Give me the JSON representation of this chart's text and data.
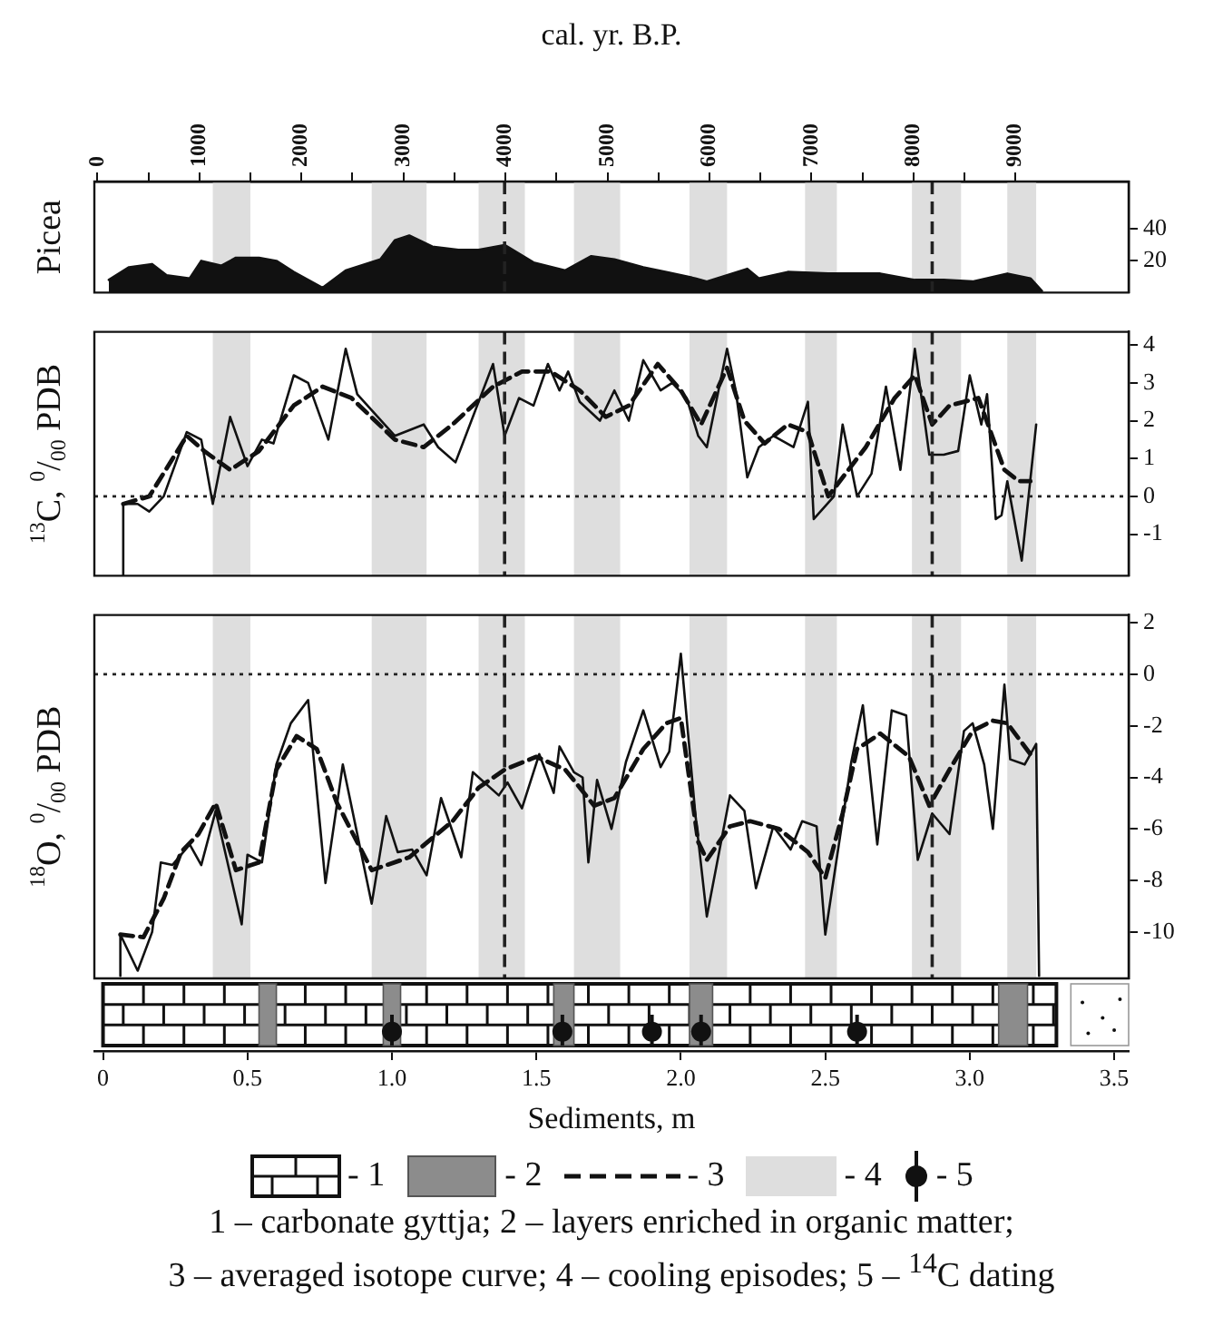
{
  "chart_data": [
    {
      "type": "area",
      "x2label": "cal. yr. B.P.",
      "ylabel": "Picea",
      "tick_labels": "y",
      "grid": false,
      "marker": "none",
      "x": [
        0.02,
        0.09,
        0.17,
        0.22,
        0.3,
        0.34,
        0.41,
        0.46,
        0.54,
        0.6,
        0.66,
        0.76,
        0.84,
        0.96,
        1.01,
        1.06,
        1.14,
        1.23,
        1.3,
        1.39,
        1.49,
        1.6,
        1.69,
        1.77,
        1.87,
        1.95,
        2.05,
        2.09,
        2.23,
        2.27,
        2.37,
        2.51,
        2.69,
        2.81,
        2.91,
        3.01,
        3.13,
        3.21,
        3.25
      ],
      "series": [
        {
          "color": "#111111",
          "axis": "y2",
          "values": [
            8,
            16,
            18,
            11,
            9,
            20,
            17,
            22,
            22,
            20,
            13,
            3,
            14,
            21,
            33,
            36,
            29,
            27,
            27,
            30,
            19,
            14,
            23,
            21,
            16,
            13,
            9,
            7,
            15,
            9,
            13,
            12,
            12,
            8,
            8,
            7,
            12,
            9,
            1
          ]
        }
      ],
      "xlim": [
        -0.03,
        3.55
      ],
      "x2lim": [
        -30,
        10110
      ],
      "x2ticks": [
        0,
        {
          "value": 500,
          "label": null
        },
        1000,
        {
          "value": 1500,
          "label": null
        },
        2000,
        {
          "value": 2500,
          "label": null
        },
        3000,
        {
          "value": 3500,
          "label": null
        },
        4000,
        {
          "value": 4500,
          "label": null
        },
        5000,
        {
          "value": 5500,
          "label": null
        },
        6000,
        {
          "value": 6500,
          "label": null
        },
        7000,
        {
          "value": 7500,
          "label": null
        },
        8000,
        {
          "value": 8500,
          "label": null
        },
        9000
      ],
      "y2lim": [
        0,
        70
      ],
      "y2ticks": [
        20,
        40
      ],
      "bands": [
        {
          "axis": "x",
          "from": 0.38,
          "to": 0.51,
          "color": "#dedede"
        },
        {
          "axis": "x",
          "from": 0.93,
          "to": 1.12,
          "color": "#dedede"
        },
        {
          "axis": "x",
          "from": 1.3,
          "to": 1.46,
          "color": "#dedede"
        },
        {
          "axis": "x",
          "from": 1.63,
          "to": 1.79,
          "color": "#dedede"
        },
        {
          "axis": "x",
          "from": 2.03,
          "to": 2.16,
          "color": "#dedede"
        },
        {
          "axis": "x",
          "from": 2.43,
          "to": 2.54,
          "color": "#dedede"
        },
        {
          "axis": "x",
          "from": 2.8,
          "to": 2.97,
          "color": "#dedede"
        },
        {
          "axis": "x",
          "from": 3.13,
          "to": 3.23,
          "color": "#dedede"
        }
      ],
      "ref_lines": [
        {
          "axis": "x",
          "value": 1.39,
          "color": "#222222",
          "line_style": "dashed"
        },
        {
          "axis": "x",
          "value": 2.87,
          "color": "#222222",
          "line_style": "dashed"
        }
      ]
    },
    {
      "type": "line",
      "ylabel": "$^{13}$C, $^{0}$/$_{00}$ PDB",
      "tick_labels": "y",
      "grid": false,
      "marker": "none",
      "series": [
        {
          "color": "#111111",
          "axis": "y2",
          "line_style": "solid",
          "x": [
            0.07,
            0.07,
            0.12,
            0.16,
            0.21,
            0.29,
            0.34,
            0.38,
            0.44,
            0.5,
            0.55,
            0.59,
            0.66,
            0.71,
            0.78,
            0.84,
            0.88,
            1.01,
            1.11,
            1.16,
            1.22,
            1.35,
            1.39,
            1.44,
            1.49,
            1.54,
            1.58,
            1.61,
            1.65,
            1.72,
            1.77,
            1.82,
            1.87,
            1.93,
            1.97,
            2.02,
            2.06,
            2.09,
            2.16,
            2.19,
            2.23,
            2.27,
            2.32,
            2.39,
            2.44,
            2.46,
            2.53,
            2.56,
            2.61,
            2.66,
            2.71,
            2.76,
            2.81,
            2.86,
            2.91,
            2.96,
            3.0,
            3.04,
            3.06,
            3.09,
            3.11,
            3.13,
            3.18,
            3.23
          ],
          "values": [
            -2.1,
            -0.2,
            -0.2,
            -0.4,
            0,
            1.7,
            1.5,
            -0.2,
            2.1,
            0.8,
            1.5,
            1.4,
            3.2,
            3.0,
            1.5,
            3.9,
            2.7,
            1.6,
            1.9,
            1.3,
            0.9,
            3.5,
            1.6,
            2.6,
            2.4,
            3.5,
            2.8,
            3.3,
            2.5,
            2.0,
            2.8,
            2.0,
            3.6,
            2.8,
            3.0,
            2.6,
            1.6,
            1.3,
            3.9,
            2.8,
            0.5,
            1.3,
            1.6,
            1.3,
            2.5,
            -0.6,
            0,
            1.9,
            0,
            0.6,
            2.9,
            0.7,
            3.9,
            1.1,
            1.1,
            1.2,
            3.2,
            1.9,
            2.7,
            -0.6,
            -0.5,
            0.4,
            -1.7,
            1.9
          ]
        },
        {
          "color": "#111111",
          "axis": "y2",
          "line_style": "dashed",
          "x": [
            0.07,
            0.16,
            0.29,
            0.35,
            0.44,
            0.54,
            0.66,
            0.76,
            0.86,
            1.01,
            1.11,
            1.21,
            1.35,
            1.45,
            1.55,
            1.65,
            1.74,
            1.82,
            1.92,
            2.0,
            2.07,
            2.16,
            2.22,
            2.29,
            2.37,
            2.44,
            2.51,
            2.64,
            2.74,
            2.81,
            2.87,
            2.93,
            3.03,
            3.12,
            3.17,
            3.21
          ],
          "values": [
            -0.2,
            0,
            1.6,
            1.2,
            0.7,
            1.2,
            2.4,
            2.9,
            2.6,
            1.5,
            1.3,
            1.9,
            2.9,
            3.3,
            3.3,
            2.8,
            2.1,
            2.4,
            3.5,
            2.8,
            1.9,
            3.4,
            2.0,
            1.4,
            1.9,
            1.7,
            0,
            1.3,
            2.6,
            3.2,
            1.9,
            2.4,
            2.6,
            0.7,
            0.4,
            0.4
          ]
        }
      ],
      "xlim": [
        -0.03,
        3.55
      ],
      "y2lim": [
        -2.1,
        4.35
      ],
      "y2ticks": [
        -1,
        0,
        1,
        2,
        3,
        4
      ],
      "bands": [
        {
          "axis": "x",
          "from": 0.38,
          "to": 0.51,
          "color": "#dedede"
        },
        {
          "axis": "x",
          "from": 0.93,
          "to": 1.12,
          "color": "#dedede"
        },
        {
          "axis": "x",
          "from": 1.3,
          "to": 1.46,
          "color": "#dedede"
        },
        {
          "axis": "x",
          "from": 1.63,
          "to": 1.79,
          "color": "#dedede"
        },
        {
          "axis": "x",
          "from": 2.03,
          "to": 2.16,
          "color": "#dedede"
        },
        {
          "axis": "x",
          "from": 2.43,
          "to": 2.54,
          "color": "#dedede"
        },
        {
          "axis": "x",
          "from": 2.8,
          "to": 2.97,
          "color": "#dedede"
        },
        {
          "axis": "x",
          "from": 3.13,
          "to": 3.23,
          "color": "#dedede"
        }
      ],
      "ref_lines": [
        {
          "axis": "x",
          "value": 1.39,
          "color": "#222222",
          "line_style": "dashed"
        },
        {
          "axis": "x",
          "value": 2.87,
          "color": "#222222",
          "line_style": "dashed"
        },
        {
          "axis": "y2",
          "value": 0,
          "color": "#222222",
          "line_style": "dotted"
        }
      ]
    },
    {
      "type": "line",
      "ylabel": "$^{18}$O, $^{0}$/$_{00}$ PDB",
      "xlabel": "Sediments, m",
      "grid": false,
      "marker": "none",
      "series": [
        {
          "color": "#111111",
          "axis": "y2",
          "line_style": "solid",
          "x": [
            0.06,
            0.06,
            0.12,
            0.17,
            0.2,
            0.24,
            0.3,
            0.34,
            0.39,
            0.48,
            0.5,
            0.55,
            0.6,
            0.65,
            0.71,
            0.77,
            0.83,
            0.93,
            0.98,
            1.02,
            1.07,
            1.12,
            1.17,
            1.24,
            1.28,
            1.37,
            1.4,
            1.45,
            1.51,
            1.56,
            1.58,
            1.63,
            1.66,
            1.68,
            1.71,
            1.76,
            1.81,
            1.87,
            1.93,
            1.96,
            2.0,
            2.05,
            2.09,
            2.17,
            2.22,
            2.26,
            2.32,
            2.38,
            2.42,
            2.47,
            2.5,
            2.59,
            2.63,
            2.68,
            2.73,
            2.78,
            2.82,
            2.87,
            2.93,
            2.98,
            3.01,
            3.05,
            3.08,
            3.12,
            3.14,
            3.19,
            3.23,
            3.24
          ],
          "values": [
            -11.7,
            -10.1,
            -11.5,
            -10.0,
            -7.3,
            -7.4,
            -6.6,
            -7.4,
            -5.3,
            -9.7,
            -7.0,
            -7.3,
            -3.5,
            -1.9,
            -1.0,
            -8.1,
            -3.5,
            -8.9,
            -5.5,
            -6.9,
            -6.8,
            -7.8,
            -4.8,
            -7.1,
            -3.8,
            -4.7,
            -4.2,
            -5.2,
            -3.1,
            -4.6,
            -2.8,
            -3.8,
            -4.0,
            -7.3,
            -4.1,
            -6.0,
            -3.4,
            -1.4,
            -3.6,
            -3.0,
            0.8,
            -5.4,
            -9.4,
            -4.7,
            -5.3,
            -8.3,
            -5.9,
            -6.8,
            -5.7,
            -5.9,
            -10.1,
            -3.4,
            -1.2,
            -6.6,
            -1.4,
            -1.6,
            -7.2,
            -5.4,
            -6.2,
            -2.2,
            -1.9,
            -3.5,
            -6.0,
            -0.4,
            -3.3,
            -3.5,
            -2.7,
            -11.7
          ]
        },
        {
          "color": "#111111",
          "axis": "y2",
          "line_style": "dashed",
          "x": [
            0.06,
            0.14,
            0.21,
            0.27,
            0.33,
            0.39,
            0.46,
            0.54,
            0.6,
            0.67,
            0.74,
            0.81,
            0.93,
            1.06,
            1.21,
            1.3,
            1.39,
            1.5,
            1.6,
            1.7,
            1.77,
            1.87,
            1.95,
            2.0,
            2.06,
            2.09,
            2.17,
            2.24,
            2.34,
            2.44,
            2.5,
            2.56,
            2.61,
            2.69,
            2.79,
            2.86,
            2.93,
            3.01,
            3.08,
            3.13,
            3.21
          ],
          "values": [
            -10.1,
            -10.2,
            -8.7,
            -6.9,
            -6.2,
            -5.0,
            -7.6,
            -7.3,
            -3.7,
            -2.4,
            -2.9,
            -5.0,
            -7.6,
            -7.1,
            -5.7,
            -4.4,
            -3.7,
            -3.2,
            -3.7,
            -5.1,
            -4.8,
            -2.9,
            -1.9,
            -1.7,
            -6.5,
            -7.2,
            -5.9,
            -5.7,
            -6.0,
            -6.9,
            -7.9,
            -5.4,
            -2.9,
            -2.3,
            -3.2,
            -5.1,
            -3.7,
            -2.2,
            -1.8,
            -1.9,
            -3.1
          ]
        }
      ],
      "xlim": [
        -0.03,
        3.55
      ],
      "xticks": [
        0,
        0.5,
        {
          "value": 1,
          "label": "1.0"
        },
        1.5,
        {
          "value": 2,
          "label": "2.0"
        },
        2.5,
        {
          "value": 3,
          "label": "3.0"
        },
        3.5
      ],
      "y2lim": [
        -11.8,
        2.3
      ],
      "y2ticks": [
        -10,
        -8,
        -6,
        -4,
        -2,
        0,
        2
      ],
      "bands": [
        {
          "axis": "x",
          "from": 0.38,
          "to": 0.51,
          "color": "#dedede"
        },
        {
          "axis": "x",
          "from": 0.93,
          "to": 1.12,
          "color": "#dedede"
        },
        {
          "axis": "x",
          "from": 1.3,
          "to": 1.46,
          "color": "#dedede"
        },
        {
          "axis": "x",
          "from": 1.63,
          "to": 1.79,
          "color": "#dedede"
        },
        {
          "axis": "x",
          "from": 2.03,
          "to": 2.16,
          "color": "#dedede"
        },
        {
          "axis": "x",
          "from": 2.43,
          "to": 2.54,
          "color": "#dedede"
        },
        {
          "axis": "x",
          "from": 2.8,
          "to": 2.97,
          "color": "#dedede"
        },
        {
          "axis": "x",
          "from": 3.13,
          "to": 3.23,
          "color": "#dedede"
        }
      ],
      "ref_lines": [
        {
          "axis": "x",
          "value": 1.39,
          "color": "#222222",
          "line_style": "dashed"
        },
        {
          "axis": "x",
          "value": 2.87,
          "color": "#222222",
          "line_style": "dashed"
        },
        {
          "axis": "y2",
          "value": 0,
          "color": "#222222",
          "line_style": "dotted"
        }
      ],
      "annotations": [
        "- 1",
        "- 2",
        "- 3",
        "- 4",
        "- 5",
        "1 – carbonate gyttja; 2 – layers enriched in organic matter;",
        "3 – averaged isotope curve; 4 – cooling episodes; 5 – $^{14}$C dating"
      ]
    }
  ]
}
